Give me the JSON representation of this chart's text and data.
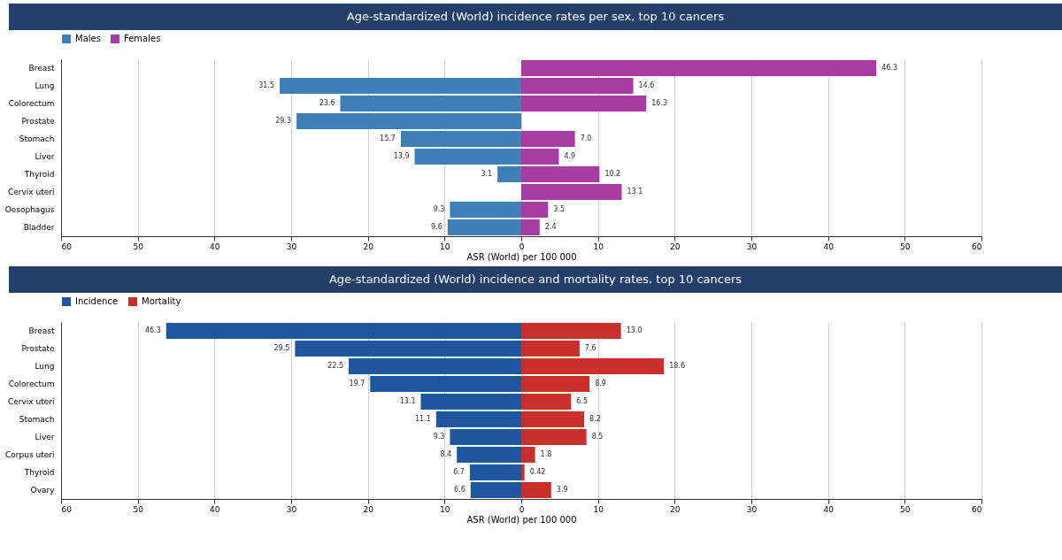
{
  "chart_data": [
    {
      "type": "bar",
      "orientation": "horizontal",
      "title": "Age-standardized (World) incidence rates per sex, top 10 cancers",
      "xlabel": "ASR (World) per 100 000",
      "categories": [
        "Breast",
        "Lung",
        "Colorectum",
        "Prostate",
        "Stomach",
        "Liver",
        "Thyroid",
        "Cervix uteri",
        "Oesophagus",
        "Bladder"
      ],
      "series": [
        {
          "name": "Males",
          "color": "#3f7fb5",
          "values": [
            null,
            31.5,
            23.6,
            29.3,
            15.7,
            13.9,
            3.1,
            null,
            9.3,
            9.6
          ],
          "base": [
            null,
            -31.5,
            -23.6,
            -29.3,
            -15.7,
            -13.9,
            -3.1,
            null,
            -9.3,
            -9.6
          ],
          "value_labels": [
            null,
            "31.5",
            "23.6",
            "29.3",
            "15.7",
            "13.9",
            "3.1",
            null,
            "9.3",
            "9.6"
          ]
        },
        {
          "name": "Females",
          "color": "#a83ca3",
          "values": [
            46.3,
            14.6,
            16.3,
            null,
            7.0,
            4.9,
            10.2,
            13.1,
            3.5,
            2.4
          ],
          "value_labels": [
            "46.3",
            "14.6",
            "16.3",
            null,
            "7.0",
            "4.9",
            "10.2",
            "13.1",
            "3.5",
            "2.4"
          ]
        }
      ],
      "xlim": [
        -60,
        60
      ],
      "xticks": [
        {
          "value": -60,
          "label": "60"
        },
        {
          "value": -50,
          "label": "50"
        },
        {
          "value": -40,
          "label": "40"
        },
        {
          "value": -30,
          "label": "30"
        },
        {
          "value": -20,
          "label": "20"
        },
        {
          "value": -10,
          "label": "10"
        },
        0,
        10,
        20,
        30,
        40,
        50,
        60
      ],
      "grid": "x",
      "legend": "top"
    },
    {
      "type": "bar",
      "orientation": "horizontal",
      "title": "Age-standardized (World) incidence and mortality rates, top 10 cancers",
      "xlabel": "ASR (World) per 100 000",
      "categories": [
        "Breast",
        "Prostate",
        "Lung",
        "Colorectum",
        "Cervix uteri",
        "Stomach",
        "Liver",
        "Corpus uteri",
        "Thyroid",
        "Ovary"
      ],
      "series": [
        {
          "name": "Incidence",
          "color": "#1f56a0",
          "values": [
            46.3,
            29.5,
            22.5,
            19.7,
            13.1,
            11.1,
            9.3,
            8.4,
            6.7,
            6.6
          ],
          "base": [
            -46.3,
            -29.5,
            -22.5,
            -19.7,
            -13.1,
            -11.1,
            -9.3,
            -8.4,
            -6.7,
            -6.6
          ],
          "value_labels": [
            "46.3",
            "29.5",
            "22.5",
            "19.7",
            "13.1",
            "11.1",
            "9.3",
            "8.4",
            "6.7",
            "6.6"
          ]
        },
        {
          "name": "Mortality",
          "color": "#c9302c",
          "values": [
            13.0,
            7.6,
            18.6,
            8.9,
            6.5,
            8.2,
            8.5,
            1.8,
            0.42,
            3.9
          ],
          "value_labels": [
            "13.0",
            "7.6",
            "18.6",
            "8.9",
            "6.5",
            "8.2",
            "8.5",
            "1.8",
            "0.42",
            "3.9"
          ]
        }
      ],
      "xlim": [
        -60,
        60
      ],
      "xticks": [
        {
          "value": -60,
          "label": "60"
        },
        {
          "value": -50,
          "label": "50"
        },
        {
          "value": -40,
          "label": "40"
        },
        {
          "value": -30,
          "label": "30"
        },
        {
          "value": -20,
          "label": "20"
        },
        {
          "value": -10,
          "label": "10"
        },
        0,
        10,
        20,
        30,
        40,
        50,
        60
      ],
      "grid": "x",
      "legend": "top"
    }
  ]
}
